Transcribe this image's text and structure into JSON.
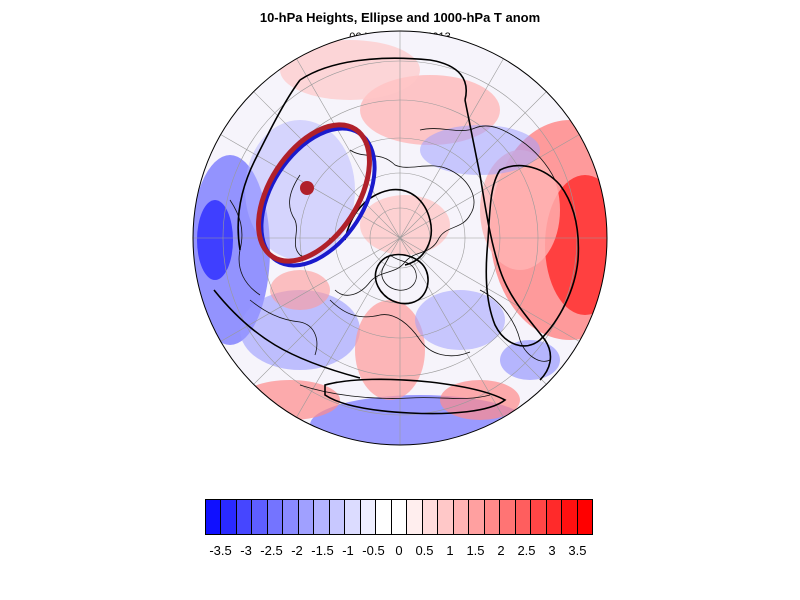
{
  "title": "10-hPa Heights, Ellipse and 1000-hPa T anom",
  "subtitle": "06 UTC 17 Jan 2013",
  "map": {
    "projection": "polar-stereographic-north",
    "field": "1000-hPa T anom",
    "contours": "10-hPa Heights",
    "overlay": "ellipse",
    "ellipse_colors": {
      "outer": "#b0202a",
      "inner": "#1a1acc",
      "center_marker": "#b0202a"
    }
  },
  "colorbar": {
    "labels": [
      "-3.5",
      "-3",
      "-2.5",
      "-2",
      "-1.5",
      "-1",
      "-0.5",
      "0",
      "0.5",
      "1",
      "1.5",
      "2",
      "2.5",
      "3",
      "3.5"
    ],
    "colors": [
      "#1010ff",
      "#2a2aff",
      "#4646ff",
      "#5e5eff",
      "#7474ff",
      "#8a8aff",
      "#a0a0ff",
      "#b4b4ff",
      "#c8c8ff",
      "#dcdcff",
      "#eeeeff",
      "#ffffff",
      "#ffffff",
      "#ffeeee",
      "#ffdcdc",
      "#ffc8c8",
      "#ffb4b4",
      "#ffa0a0",
      "#ff8a8a",
      "#ff7474",
      "#ff5e5e",
      "#ff4646",
      "#ff2a2a",
      "#ff1010",
      "#ff0000"
    ]
  }
}
